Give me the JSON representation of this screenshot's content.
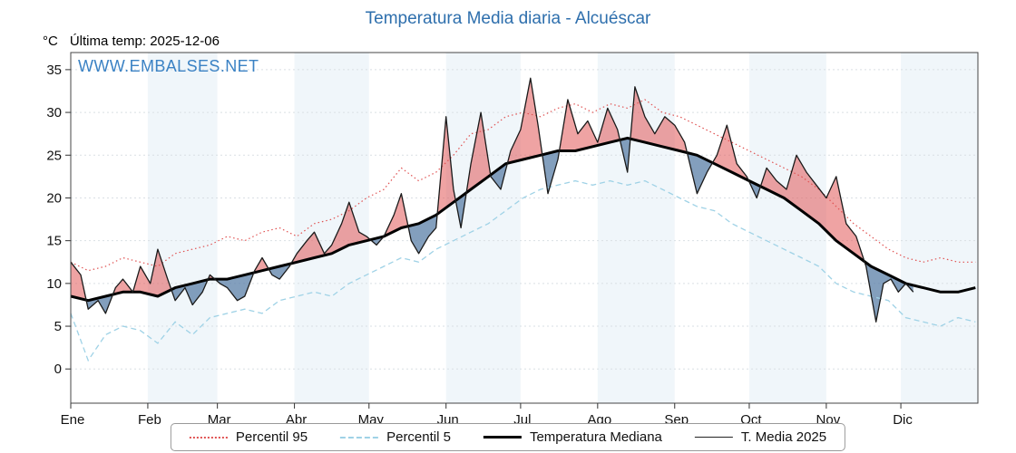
{
  "page": {
    "title": "Temperatura Media diaria - Alcuéscar"
  },
  "header": {
    "unit_label": "°C",
    "last_temp_label": "Última temp: 2025-12-06"
  },
  "watermark": "WWW.EMBALSES.NET",
  "legend": {
    "items": [
      {
        "label": "Percentil 95",
        "color": "#e05252",
        "style": "dotted",
        "width": 2
      },
      {
        "label": "Percentil 5",
        "color": "#9fd2e6",
        "style": "dashed",
        "width": 2
      },
      {
        "label": "Temperatura Mediana",
        "color": "#000000",
        "style": "solid",
        "width": 3
      },
      {
        "label": "T. Media 2025",
        "color": "#222222",
        "style": "solid",
        "width": 1
      }
    ]
  },
  "chart_data": {
    "type": "line",
    "title": "Temperatura Media diaria - Alcuéscar",
    "ylabel": "°C",
    "ylim": [
      -4,
      37
    ],
    "y_ticks": [
      0,
      5,
      10,
      15,
      20,
      25,
      30,
      35
    ],
    "x_tick_labels": [
      "Ene",
      "Feb",
      "Mar",
      "Abr",
      "May",
      "Jun",
      "Jul",
      "Ago",
      "Sep",
      "Oct",
      "Nov",
      "Dic"
    ],
    "month_start_days": [
      1,
      32,
      60,
      91,
      121,
      152,
      182,
      213,
      244,
      274,
      305,
      335
    ],
    "x_range_days": [
      1,
      366
    ],
    "last_data_day": 340,
    "grid": true,
    "legend_position": "bottom",
    "fill_above_color": "rgba(226,88,88,0.55)",
    "fill_below_color": "rgba(96,132,170,0.78)",
    "band_color": "#f0f6fa",
    "series": [
      {
        "name": "Percentil 95",
        "color": "#e05252",
        "line": "dotted",
        "days": [
          1,
          8,
          15,
          22,
          29,
          36,
          43,
          50,
          57,
          64,
          71,
          78,
          85,
          92,
          99,
          106,
          113,
          120,
          127,
          134,
          141,
          148,
          155,
          162,
          169,
          176,
          183,
          190,
          197,
          204,
          211,
          218,
          225,
          232,
          239,
          246,
          253,
          260,
          267,
          274,
          281,
          288,
          295,
          302,
          309,
          316,
          323,
          330,
          337,
          344,
          351,
          358,
          365
        ],
        "values": [
          12.5,
          11.5,
          12,
          13,
          12.5,
          12,
          13.5,
          14,
          14.5,
          15.5,
          15,
          16,
          16.5,
          15.5,
          17,
          17.5,
          18.5,
          20,
          21,
          23.5,
          22,
          23,
          25,
          27.5,
          28,
          29.5,
          30,
          29.5,
          30.5,
          31,
          30,
          31,
          30.5,
          31.5,
          30,
          29.5,
          28.5,
          27.5,
          26.5,
          25.5,
          24.5,
          23.5,
          22.5,
          21,
          19,
          17,
          15.5,
          14,
          13,
          12.5,
          13,
          12.5,
          12.5
        ]
      },
      {
        "name": "Percentil 5",
        "color": "#9fd2e6",
        "line": "dashed",
        "days": [
          1,
          8,
          15,
          22,
          29,
          36,
          43,
          50,
          57,
          64,
          71,
          78,
          85,
          92,
          99,
          106,
          113,
          120,
          127,
          134,
          141,
          148,
          155,
          162,
          169,
          176,
          183,
          190,
          197,
          204,
          211,
          218,
          225,
          232,
          239,
          246,
          253,
          260,
          267,
          274,
          281,
          288,
          295,
          302,
          309,
          316,
          323,
          330,
          337,
          344,
          351,
          358,
          365
        ],
        "values": [
          6.5,
          1,
          4,
          5,
          4.5,
          3,
          5.5,
          4,
          6,
          6.5,
          7,
          6.5,
          8,
          8.5,
          9,
          8.5,
          10,
          11,
          12,
          13,
          12.5,
          14,
          15,
          16,
          17,
          18.5,
          20,
          21,
          21.5,
          22,
          21.5,
          22,
          21.5,
          22,
          21,
          20,
          19,
          18.5,
          17,
          16,
          15,
          14,
          13,
          12,
          10,
          9,
          8.5,
          8,
          6,
          5.5,
          5,
          6,
          5.5
        ]
      },
      {
        "name": "Temperatura Mediana",
        "color": "#000000",
        "line": "solid-thick",
        "days": [
          1,
          8,
          15,
          22,
          29,
          36,
          43,
          50,
          57,
          64,
          71,
          78,
          85,
          92,
          99,
          106,
          113,
          120,
          127,
          134,
          141,
          148,
          155,
          162,
          169,
          176,
          183,
          190,
          197,
          204,
          211,
          218,
          225,
          232,
          239,
          246,
          253,
          260,
          267,
          274,
          281,
          288,
          295,
          302,
          309,
          316,
          323,
          330,
          337,
          344,
          351,
          358,
          365
        ],
        "values": [
          8.5,
          8,
          8.5,
          9,
          9,
          8.5,
          9.5,
          10,
          10.5,
          10.5,
          11,
          11.5,
          12,
          12.5,
          13,
          13.5,
          14.5,
          15,
          15.5,
          16.5,
          17,
          18,
          19.5,
          21,
          22.5,
          24,
          24.5,
          25,
          25.5,
          25.5,
          26,
          26.5,
          27,
          26.5,
          26,
          25.5,
          25,
          24,
          23,
          22,
          21,
          20,
          18.5,
          17,
          15,
          13.5,
          12,
          11,
          10,
          9.5,
          9,
          9,
          9.5
        ]
      },
      {
        "name": "T. Media 2025",
        "color": "#1a1a1a",
        "line": "solid-thin",
        "days": [
          1,
          5,
          8,
          12,
          15,
          19,
          22,
          26,
          29,
          33,
          36,
          40,
          43,
          47,
          50,
          54,
          57,
          61,
          64,
          68,
          71,
          75,
          78,
          82,
          85,
          89,
          92,
          96,
          99,
          103,
          106,
          110,
          113,
          117,
          120,
          124,
          127,
          131,
          134,
          138,
          141,
          145,
          148,
          152,
          155,
          158,
          162,
          166,
          170,
          174,
          178,
          182,
          186,
          189,
          193,
          197,
          201,
          205,
          209,
          213,
          217,
          221,
          225,
          228,
          232,
          236,
          240,
          244,
          248,
          253,
          257,
          261,
          265,
          269,
          273,
          277,
          281,
          285,
          289,
          293,
          297,
          301,
          305,
          309,
          313,
          317,
          321,
          325,
          328,
          331,
          334,
          337,
          340
        ],
        "values": [
          12.5,
          11,
          7,
          8,
          6.5,
          9.5,
          10.5,
          9,
          12,
          10,
          14,
          10.5,
          8,
          9.5,
          7.5,
          9,
          11,
          10,
          9.5,
          8,
          8.5,
          11.5,
          13,
          11,
          10.5,
          12,
          13.5,
          15,
          16,
          13.5,
          14.5,
          17,
          19.5,
          16,
          15.5,
          14.5,
          15.5,
          18,
          20.5,
          15,
          13.5,
          15.5,
          16.5,
          29.5,
          21,
          16.5,
          24,
          30,
          22.5,
          21,
          25.5,
          28,
          34,
          28.5,
          20.5,
          24.5,
          31.5,
          27.5,
          29,
          26.5,
          30.5,
          28,
          23,
          33,
          29.5,
          27.5,
          29.5,
          28.5,
          26.5,
          20.5,
          23,
          25,
          28.5,
          24,
          22.5,
          20,
          23.5,
          22,
          21,
          25,
          23,
          21.5,
          20,
          22.5,
          17,
          15.5,
          12,
          5.5,
          10,
          10.5,
          9,
          10,
          9
        ]
      }
    ]
  }
}
